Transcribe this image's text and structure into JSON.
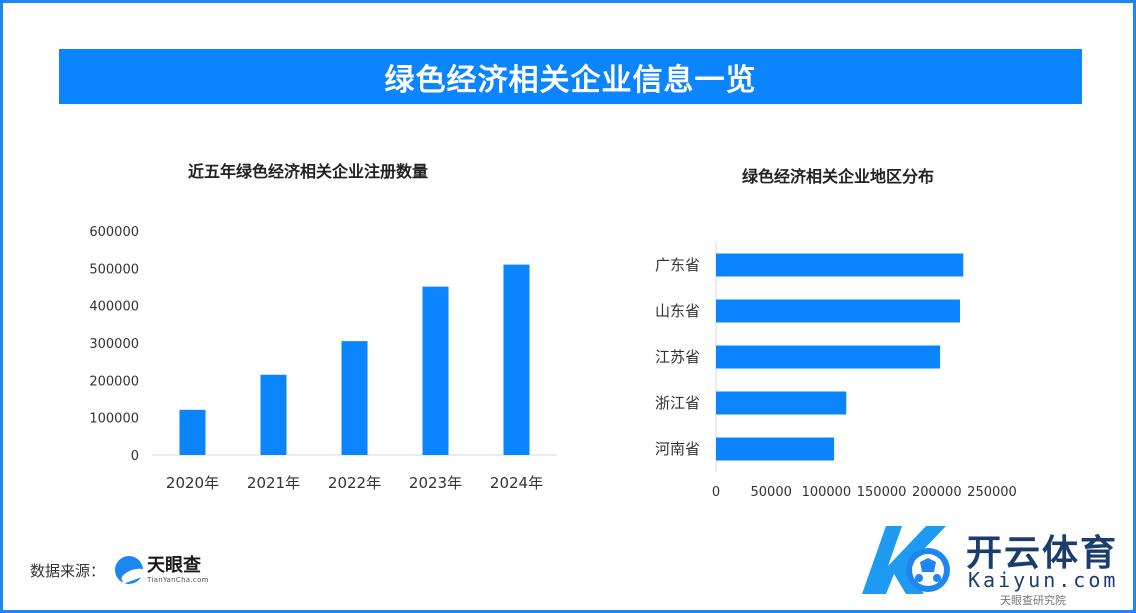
{
  "header": {
    "title": "绿色经济相关企业信息一览"
  },
  "chart_data": [
    {
      "type": "bar",
      "title": "近五年绿色经济相关企业注册数量",
      "categories": [
        "2020年",
        "2021年",
        "2022年",
        "2023年",
        "2024年"
      ],
      "values": [
        121000,
        215000,
        305000,
        451000,
        510000
      ],
      "ylim": [
        0,
        600000
      ],
      "yticks": [
        "0",
        "100000",
        "200000",
        "300000",
        "400000",
        "500000",
        "600000"
      ],
      "grid": false,
      "color": "#0A84FF"
    },
    {
      "type": "bar",
      "orientation": "horizontal",
      "title": "绿色经济相关企业地区分布",
      "categories": [
        "广东省",
        "山东省",
        "江苏省",
        "浙江省",
        "河南省"
      ],
      "values": [
        224000,
        221000,
        203000,
        118000,
        107000
      ],
      "xlim": [
        0,
        250000
      ],
      "xticks": [
        "0",
        "50000",
        "100000",
        "150000",
        "200000",
        "250000"
      ],
      "grid": false,
      "color": "#0A84FF"
    }
  ],
  "source": {
    "label": "数据来源：",
    "logo_cn": "天眼查",
    "logo_en": "TianYanCha.com"
  },
  "watermark": {
    "cn": "开云体育",
    "en": "Kaiyun.com",
    "sub": "天眼查研究院"
  }
}
